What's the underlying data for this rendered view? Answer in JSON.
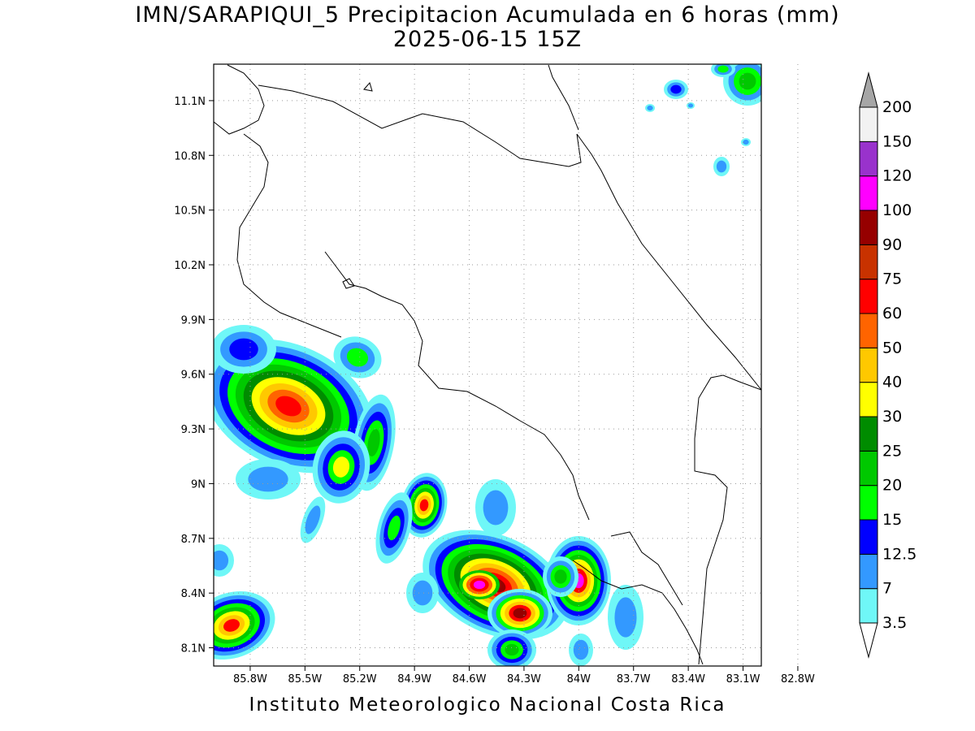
{
  "title": {
    "line1": "IMN/SARAPIQUI_5 Precipitacion Acumulada en 6 horas (mm)",
    "line2": "2025-06-15 15Z"
  },
  "footer": "Instituto Meteorologico Nacional Costa Rica",
  "map": {
    "lon_range": [
      -86.0,
      -83.0
    ],
    "lat_range": [
      8.0,
      11.3
    ],
    "lon_ticks": [
      "85.8W",
      "85.5W",
      "85.2W",
      "84.9W",
      "84.6W",
      "84.3W",
      "84W",
      "83.7W",
      "83.4W",
      "83.1W",
      "82.8W"
    ],
    "lat_ticks": [
      "8.1N",
      "8.4N",
      "8.7N",
      "9N",
      "9.3N",
      "9.6N",
      "9.9N",
      "10.2N",
      "10.5N",
      "10.8N",
      "11.1N"
    ],
    "grid": "dotted"
  },
  "colorbar": {
    "labels": [
      "3.5",
      "7",
      "12.5",
      "15",
      "20",
      "25",
      "30",
      "40",
      "50",
      "60",
      "75",
      "90",
      "100",
      "120",
      "150",
      "200"
    ],
    "colors": [
      "#6ff7f7",
      "#3399ff",
      "#0000ff",
      "#00ff00",
      "#00c800",
      "#008c00",
      "#ffff00",
      "#ffc800",
      "#ff6400",
      "#ff0000",
      "#c83200",
      "#960000",
      "#ff00ff",
      "#9932cc",
      "#f2f2f2",
      "#a6a6a6"
    ]
  }
}
